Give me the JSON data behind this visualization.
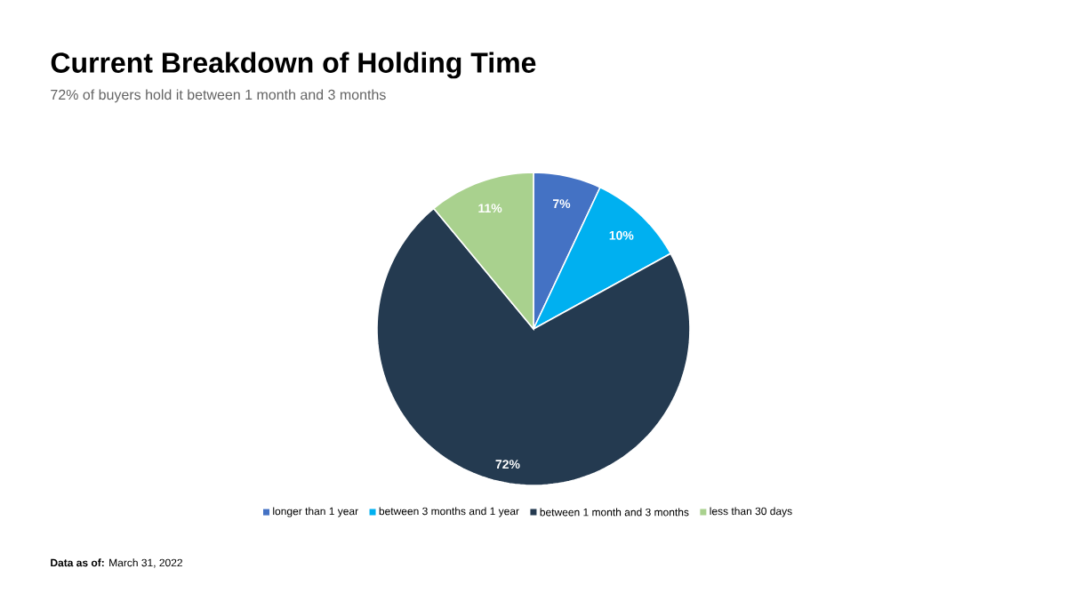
{
  "chart_data": {
    "type": "pie",
    "title": "Current Breakdown of Holding Time",
    "subtitle": "72% of buyers hold it between 1 month and 3 months",
    "categories": [
      "longer than 1 year",
      "between 3 months and 1 year",
      "between 1 month and 3 months",
      "less than 30 days"
    ],
    "values": [
      7,
      10,
      72,
      11
    ],
    "colors": [
      "#4472c4",
      "#00b0f0",
      "#243a50",
      "#a9d18e"
    ],
    "value_labels": [
      "7%",
      "10%",
      "72%",
      "11%"
    ],
    "legend": "bottom",
    "annotations": [
      "**Data as of:** March 31, 2022"
    ]
  }
}
